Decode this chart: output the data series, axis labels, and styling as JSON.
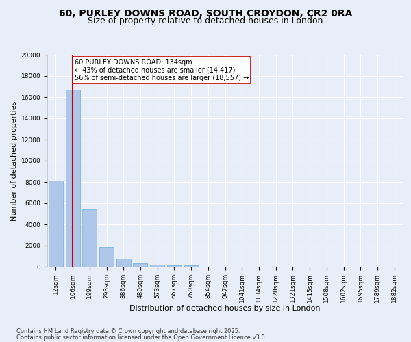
{
  "title1": "60, PURLEY DOWNS ROAD, SOUTH CROYDON, CR2 0RA",
  "title2": "Size of property relative to detached houses in London",
  "xlabel": "Distribution of detached houses by size in London",
  "ylabel": "Number of detached properties",
  "categories": [
    "12sqm",
    "106sqm",
    "199sqm",
    "293sqm",
    "386sqm",
    "480sqm",
    "573sqm",
    "667sqm",
    "760sqm",
    "854sqm",
    "947sqm",
    "1041sqm",
    "1134sqm",
    "1228sqm",
    "1321sqm",
    "1415sqm",
    "1508sqm",
    "1602sqm",
    "1695sqm",
    "1789sqm",
    "1882sqm"
  ],
  "values": [
    8100,
    16700,
    5400,
    1850,
    750,
    320,
    200,
    140,
    130,
    0,
    0,
    0,
    0,
    0,
    0,
    0,
    0,
    0,
    0,
    0,
    0
  ],
  "bar_color": "#aec6e8",
  "bar_edge_color": "#6baed6",
  "vline_x": 1,
  "vline_color": "#cc0000",
  "annotation_text": "60 PURLEY DOWNS ROAD: 134sqm\n← 43% of detached houses are smaller (14,417)\n56% of semi-detached houses are larger (18,557) →",
  "annotation_box_color": "#ffffff",
  "annotation_box_edge": "#cc0000",
  "ylim": [
    0,
    20000
  ],
  "yticks": [
    0,
    2000,
    4000,
    6000,
    8000,
    10000,
    12000,
    14000,
    16000,
    18000,
    20000
  ],
  "background_color": "#e8eef8",
  "footer_line1": "Contains HM Land Registry data © Crown copyright and database right 2025.",
  "footer_line2": "Contains public sector information licensed under the Open Government Licence v3.0.",
  "title_fontsize": 10,
  "subtitle_fontsize": 9,
  "axis_label_fontsize": 8,
  "tick_fontsize": 6.5,
  "footer_fontsize": 6,
  "annotation_fontsize": 7
}
